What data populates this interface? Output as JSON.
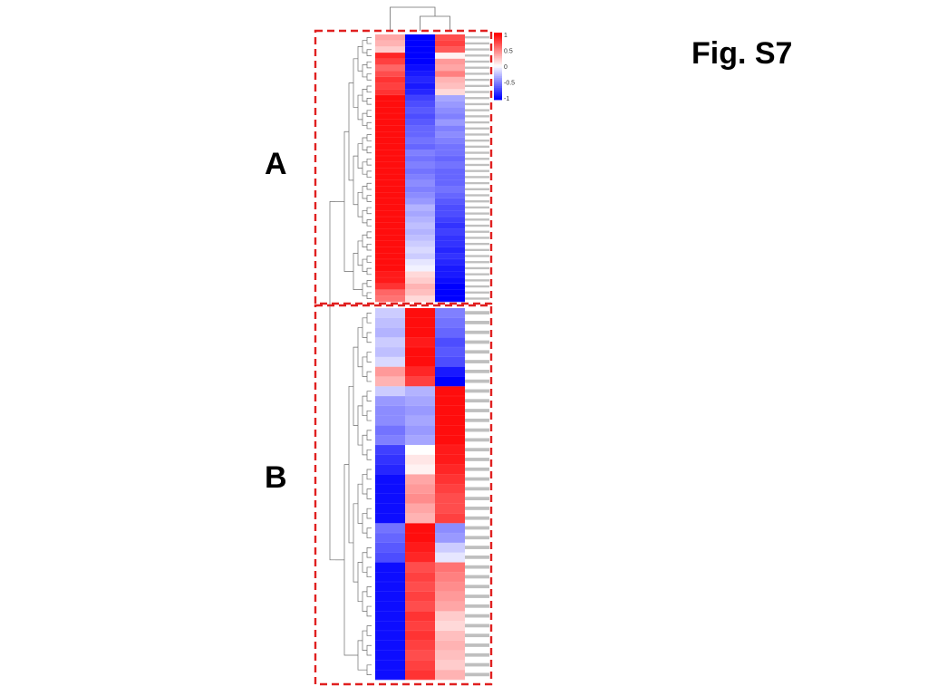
{
  "slide": {
    "title": "Fig. S7",
    "cluster_a_label": "A",
    "cluster_b_label": "B"
  },
  "colors": {
    "high": "#ff0000",
    "mid": "#ffffff",
    "low": "#0000ff",
    "box": "#e02020",
    "dendrogram": "#6e6e6e"
  },
  "chart_data": {
    "type": "heatmap",
    "title": "",
    "columns": 3,
    "colorbar": {
      "ticks": [
        "1",
        "0.5",
        "0",
        "-0.5",
        "-1"
      ],
      "range": [
        -1,
        1
      ]
    },
    "clusters": [
      {
        "name": "A",
        "rows": [
          [
            0.35,
            -1,
            0.7
          ],
          [
            0.3,
            -1,
            0.75
          ],
          [
            0.2,
            -1,
            0.65
          ],
          [
            0.85,
            -1,
            0.05
          ],
          [
            0.75,
            -1,
            0.4
          ],
          [
            0.6,
            -0.95,
            0.35
          ],
          [
            0.7,
            -0.9,
            0.5
          ],
          [
            0.8,
            -0.85,
            0.3
          ],
          [
            0.75,
            -0.9,
            0.25
          ],
          [
            0.8,
            -0.85,
            0.15
          ],
          [
            0.95,
            -0.75,
            -0.35
          ],
          [
            0.95,
            -0.7,
            -0.4
          ],
          [
            0.95,
            -0.65,
            -0.45
          ],
          [
            0.95,
            -0.7,
            -0.5
          ],
          [
            0.95,
            -0.65,
            -0.4
          ],
          [
            0.95,
            -0.6,
            -0.5
          ],
          [
            0.95,
            -0.6,
            -0.45
          ],
          [
            0.95,
            -0.55,
            -0.5
          ],
          [
            0.95,
            -0.6,
            -0.55
          ],
          [
            0.95,
            -0.5,
            -0.55
          ],
          [
            0.95,
            -0.55,
            -0.6
          ],
          [
            0.95,
            -0.5,
            -0.55
          ],
          [
            0.95,
            -0.55,
            -0.6
          ],
          [
            0.95,
            -0.5,
            -0.6
          ],
          [
            0.95,
            -0.45,
            -0.6
          ],
          [
            0.95,
            -0.5,
            -0.55
          ],
          [
            0.95,
            -0.45,
            -0.6
          ],
          [
            0.95,
            -0.4,
            -0.65
          ],
          [
            0.95,
            -0.3,
            -0.7
          ],
          [
            0.95,
            -0.35,
            -0.7
          ],
          [
            0.95,
            -0.3,
            -0.75
          ],
          [
            0.95,
            -0.25,
            -0.8
          ],
          [
            0.95,
            -0.3,
            -0.75
          ],
          [
            0.95,
            -0.25,
            -0.8
          ],
          [
            0.95,
            -0.2,
            -0.8
          ],
          [
            0.95,
            -0.15,
            -0.85
          ],
          [
            0.95,
            -0.2,
            -0.8
          ],
          [
            0.95,
            -0.1,
            -0.85
          ],
          [
            0.95,
            -0.05,
            -0.9
          ],
          [
            0.9,
            0.15,
            -0.9
          ],
          [
            0.9,
            0.2,
            -0.95
          ],
          [
            0.8,
            0.3,
            -1
          ],
          [
            0.6,
            0.25,
            -1
          ],
          [
            0.55,
            0.15,
            -1
          ]
        ]
      },
      {
        "name": "B",
        "rows": [
          [
            -0.2,
            0.95,
            -0.5
          ],
          [
            -0.25,
            0.95,
            -0.55
          ],
          [
            -0.3,
            0.95,
            -0.6
          ],
          [
            -0.2,
            0.9,
            -0.7
          ],
          [
            -0.25,
            0.95,
            -0.65
          ],
          [
            -0.15,
            0.95,
            -0.7
          ],
          [
            0.4,
            0.85,
            -0.9
          ],
          [
            0.3,
            0.75,
            -1
          ],
          [
            -0.2,
            -0.3,
            0.95
          ],
          [
            -0.4,
            -0.35,
            0.95
          ],
          [
            -0.45,
            -0.4,
            0.95
          ],
          [
            -0.45,
            -0.35,
            0.95
          ],
          [
            -0.55,
            -0.4,
            0.95
          ],
          [
            -0.5,
            -0.35,
            0.95
          ],
          [
            -0.75,
            0.0,
            0.9
          ],
          [
            -0.8,
            0.1,
            0.9
          ],
          [
            -0.85,
            0.05,
            0.85
          ],
          [
            -0.95,
            0.35,
            0.8
          ],
          [
            -0.95,
            0.4,
            0.75
          ],
          [
            -0.95,
            0.45,
            0.7
          ],
          [
            -0.95,
            0.35,
            0.7
          ],
          [
            -0.95,
            0.3,
            0.75
          ],
          [
            -0.55,
            0.95,
            -0.45
          ],
          [
            -0.6,
            0.95,
            -0.4
          ],
          [
            -0.65,
            0.9,
            -0.2
          ],
          [
            -0.7,
            0.85,
            -0.1
          ],
          [
            -0.95,
            0.7,
            0.55
          ],
          [
            -0.95,
            0.75,
            0.5
          ],
          [
            -0.95,
            0.7,
            0.45
          ],
          [
            -0.95,
            0.75,
            0.4
          ],
          [
            -0.95,
            0.7,
            0.35
          ],
          [
            -0.95,
            0.8,
            0.2
          ],
          [
            -0.95,
            0.75,
            0.15
          ],
          [
            -0.95,
            0.8,
            0.25
          ],
          [
            -0.95,
            0.75,
            0.3
          ],
          [
            -0.95,
            0.7,
            0.25
          ],
          [
            -0.95,
            0.75,
            0.2
          ],
          [
            -0.95,
            0.8,
            0.3
          ]
        ]
      }
    ]
  }
}
